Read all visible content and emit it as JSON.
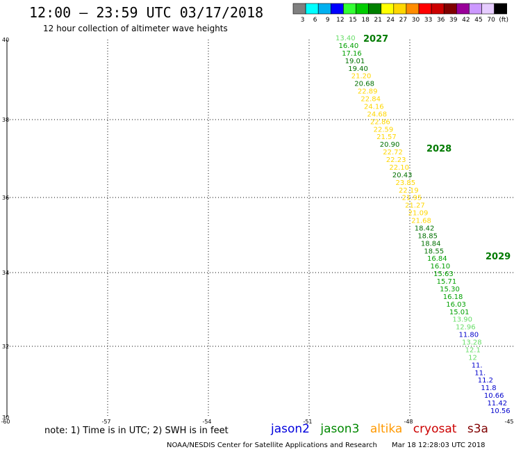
{
  "title": "12:00 – 23:59 UTC 03/17/2018",
  "subtitle": "12 hour collection of altimeter wave heights",
  "legend": {
    "colors": [
      "#808080",
      "#00ffff",
      "#00b0f0",
      "#0000ff",
      "#33ff33",
      "#00cc00",
      "#008000",
      "#ffff00",
      "#ffd700",
      "#ff8c00",
      "#ff0000",
      "#cc0000",
      "#800000",
      "#990099",
      "#cc99ff",
      "#e6ccff",
      "#000000"
    ],
    "labels": [
      "3",
      "6",
      "9",
      "12",
      "15",
      "18",
      "21",
      "24",
      "27",
      "30",
      "33",
      "36",
      "39",
      "42",
      "45",
      "70",
      "(ft)"
    ]
  },
  "axes": {
    "lon_ticks": [
      "-60",
      "-57",
      "-54",
      "-51",
      "-48",
      "-45"
    ],
    "lat_ticks": [
      "40",
      "38",
      "36",
      "34",
      "32",
      "30"
    ]
  },
  "tracks": [
    {
      "label": "2027",
      "color": "#007a00"
    },
    {
      "label": "2028",
      "color": "#007a00"
    },
    {
      "label": "2029",
      "color": "#007a00"
    }
  ],
  "observations": [
    {
      "v": "13.40",
      "c": "#66dd66"
    },
    {
      "v": "16.40",
      "c": "#00a000"
    },
    {
      "v": "17.16",
      "c": "#00a000"
    },
    {
      "v": "19.01",
      "c": "#007000"
    },
    {
      "v": "19.40",
      "c": "#007000"
    },
    {
      "v": "21.20",
      "c": "#ffd700"
    },
    {
      "v": "20.68",
      "c": "#007000"
    },
    {
      "v": "22.89",
      "c": "#ffd700"
    },
    {
      "v": "22.84",
      "c": "#ffd700"
    },
    {
      "v": "24.16",
      "c": "#ffd700"
    },
    {
      "v": "24.68",
      "c": "#ffd700"
    },
    {
      "v": "22.86",
      "c": "#ffd700"
    },
    {
      "v": "22.59",
      "c": "#ffd700"
    },
    {
      "v": "21.57",
      "c": "#ffd700"
    },
    {
      "v": "20.90",
      "c": "#007000"
    },
    {
      "v": "22.72",
      "c": "#ffd700"
    },
    {
      "v": "22.23",
      "c": "#ffd700"
    },
    {
      "v": "22.10",
      "c": "#ffd700"
    },
    {
      "v": "20.43",
      "c": "#007000"
    },
    {
      "v": "23.85",
      "c": "#ffd700"
    },
    {
      "v": "22.19",
      "c": "#ffd700"
    },
    {
      "v": "21.95",
      "c": "#ffd700"
    },
    {
      "v": "21.27",
      "c": "#ffd700"
    },
    {
      "v": "21.09",
      "c": "#ffd700"
    },
    {
      "v": "21.68",
      "c": "#ffd700"
    },
    {
      "v": "18.42",
      "c": "#007000"
    },
    {
      "v": "18.85",
      "c": "#007000"
    },
    {
      "v": "18.84",
      "c": "#007000"
    },
    {
      "v": "18.55",
      "c": "#007000"
    },
    {
      "v": "16.84",
      "c": "#00a000"
    },
    {
      "v": "16.10",
      "c": "#00a000"
    },
    {
      "v": "15.63",
      "c": "#00a000"
    },
    {
      "v": "15.71",
      "c": "#00a000"
    },
    {
      "v": "15.30",
      "c": "#00a000"
    },
    {
      "v": "16.18",
      "c": "#00a000"
    },
    {
      "v": "16.03",
      "c": "#00a000"
    },
    {
      "v": "15.01",
      "c": "#00a000"
    },
    {
      "v": "13.90",
      "c": "#66dd66"
    },
    {
      "v": "12.96",
      "c": "#66dd66"
    },
    {
      "v": "11.80",
      "c": "#0000cc"
    },
    {
      "v": "13.28",
      "c": "#66dd66"
    },
    {
      "v": "12.1",
      "c": "#66dd66"
    },
    {
      "v": "12",
      "c": "#66dd66"
    },
    {
      "v": "11.",
      "c": "#0000cc"
    },
    {
      "v": "11.",
      "c": "#0000cc"
    },
    {
      "v": "11.2",
      "c": "#0000cc"
    },
    {
      "v": "11.8",
      "c": "#0000cc"
    },
    {
      "v": "10.66",
      "c": "#0000cc"
    },
    {
      "v": "11.42",
      "c": "#0000cc"
    },
    {
      "v": "10.56",
      "c": "#0000cc"
    }
  ],
  "note": "note: 1) Time is in UTC; 2) SWH is in feet",
  "satellites": [
    {
      "name": "jason2",
      "color": "#0000dd"
    },
    {
      "name": "jason3",
      "color": "#008800"
    },
    {
      "name": "altika",
      "color": "#ff9900"
    },
    {
      "name": "cryosat",
      "color": "#cc0000"
    },
    {
      "name": "s3a",
      "color": "#800000"
    }
  ],
  "footer": {
    "org": "NOAA/NESDIS Center for Satellite Applications and Research",
    "timestamp": "Mar 18 12:28:03 UTC 2018"
  }
}
